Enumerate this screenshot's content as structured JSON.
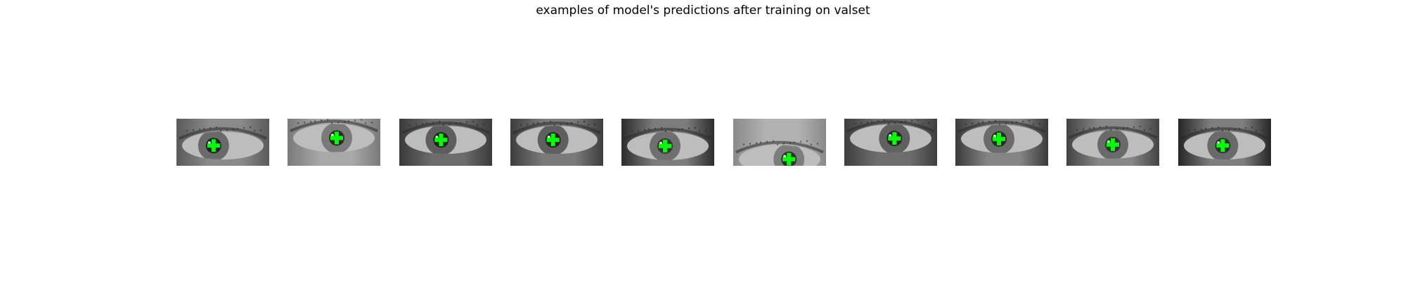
{
  "figure": {
    "title": "examples of model's predictions after training on valset"
  },
  "panels": [
    {
      "id": 1,
      "skin": "#8a8a8a",
      "corner": "#5a5a5a",
      "iris": "#6a6a6a",
      "pupil": "#1f1f1f",
      "pred": [
        0.4,
        0.57
      ]
    },
    {
      "id": 2,
      "skin": "#a8a8a8",
      "corner": "#7a7a7a",
      "iris": "#7a7a7a",
      "pupil": "#2a2a2a",
      "pred": [
        0.53,
        0.41
      ]
    },
    {
      "id": 3,
      "skin": "#6c6c6c",
      "corner": "#3a3a3a",
      "iris": "#5d5d5d",
      "pupil": "#202020",
      "pred": [
        0.45,
        0.45
      ]
    },
    {
      "id": 4,
      "skin": "#7a7a7a",
      "corner": "#3d3d3d",
      "iris": "#5f5f5f",
      "pupil": "#232323",
      "pred": [
        0.46,
        0.45
      ]
    },
    {
      "id": 5,
      "skin": "#7c7c7c",
      "corner": "#2c2c2c",
      "iris": "#6f6f6f",
      "pupil": "#353535",
      "pred": [
        0.47,
        0.58
      ]
    },
    {
      "id": 6,
      "skin": "#b2b2b2",
      "corner": "#8a8a8a",
      "iris": "#7d7d7d",
      "pupil": "#2f2f2f",
      "pred": [
        0.6,
        0.86
      ]
    },
    {
      "id": 7,
      "skin": "#6e6e6e",
      "corner": "#3e3e3e",
      "iris": "#606060",
      "pupil": "#242424",
      "pred": [
        0.54,
        0.42
      ]
    },
    {
      "id": 8,
      "skin": "#858585",
      "corner": "#3a3a3a",
      "iris": "#6b6b6b",
      "pupil": "#2b2b2b",
      "pred": [
        0.47,
        0.43
      ]
    },
    {
      "id": 9,
      "skin": "#878787",
      "corner": "#434343",
      "iris": "#6a6a6a",
      "pupil": "#333333",
      "pred": [
        0.5,
        0.55
      ]
    },
    {
      "id": 10,
      "skin": "#7e7e7e",
      "corner": "#262626",
      "iris": "#6a6a6a",
      "pupil": "#303030",
      "pred": [
        0.48,
        0.57
      ]
    }
  ],
  "marker": {
    "color": "#00ff00",
    "shape": "plus"
  }
}
